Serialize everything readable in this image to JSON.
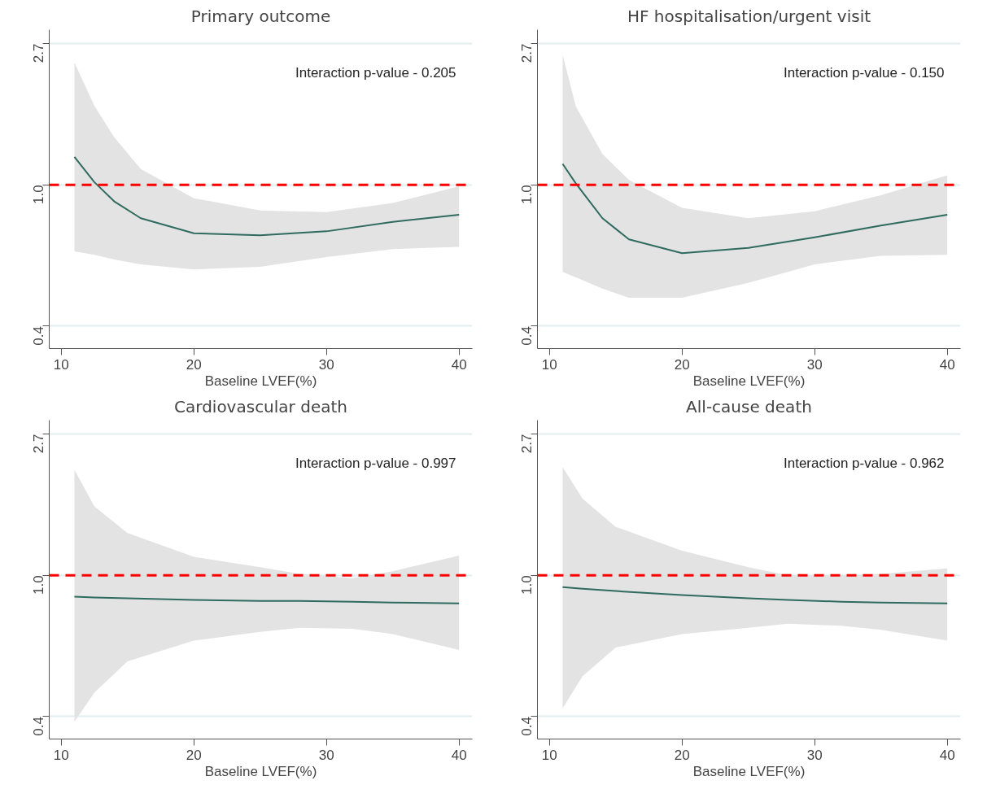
{
  "chart_data": [
    {
      "type": "line",
      "title": "Primary outcome",
      "xlabel": "Baseline LVEF(%)",
      "log": "y",
      "grid": "y",
      "xlim": [
        9.1,
        41
      ],
      "xticks": [
        10,
        20,
        30,
        40
      ],
      "ylim": [
        0.314,
        3.0
      ],
      "yticks": [
        {
          "value": 0.3679,
          "label": "0.4"
        },
        {
          "value": 1,
          "label": "1.0"
        },
        {
          "value": 2.7183,
          "label": "2.7"
        }
      ],
      "ref_lines": [
        {
          "axis": "y",
          "value": 1,
          "color": "#ff0000",
          "line_style": "dashed"
        }
      ],
      "annotations": [
        "Interaction p-value - 0.205"
      ],
      "series": [
        {
          "color": "#2f6b5e",
          "x": [
            11,
            12.5,
            14,
            16,
            20,
            25,
            30,
            35,
            40
          ],
          "values": [
            1.22,
            1.02,
            0.89,
            0.79,
            0.71,
            0.7,
            0.72,
            0.77,
            0.81
          ],
          "lower": [
            0.625,
            0.61,
            0.59,
            0.57,
            0.55,
            0.56,
            0.6,
            0.635,
            0.645
          ],
          "upper": [
            2.38,
            1.75,
            1.4,
            1.12,
            0.91,
            0.835,
            0.825,
            0.88,
            0.99
          ]
        }
      ]
    },
    {
      "type": "line",
      "title": "HF hospitalisation/urgent visit",
      "xlabel": "Baseline LVEF(%)",
      "log": "y",
      "grid": "y",
      "xlim": [
        9.1,
        41
      ],
      "xticks": [
        10,
        20,
        30,
        40
      ],
      "ylim": [
        0.314,
        3.0
      ],
      "yticks": [
        {
          "value": 0.3679,
          "label": "0.4"
        },
        {
          "value": 1,
          "label": "1.0"
        },
        {
          "value": 2.7183,
          "label": "2.7"
        }
      ],
      "ref_lines": [
        {
          "axis": "y",
          "value": 1,
          "color": "#ff0000",
          "line_style": "dashed"
        }
      ],
      "annotations": [
        "Interaction p-value - 0.150"
      ],
      "series": [
        {
          "color": "#2f6b5e",
          "x": [
            11,
            12,
            14,
            16,
            20,
            25,
            30,
            35,
            40
          ],
          "values": [
            1.16,
            1.01,
            0.79,
            0.68,
            0.617,
            0.64,
            0.69,
            0.75,
            0.81
          ],
          "lower": [
            0.54,
            0.52,
            0.48,
            0.45,
            0.45,
            0.5,
            0.57,
            0.605,
            0.61
          ],
          "upper": [
            2.51,
            1.74,
            1.245,
            1.035,
            0.85,
            0.79,
            0.83,
            0.93,
            1.07
          ]
        }
      ]
    },
    {
      "type": "line",
      "title": "Cardiovascular death",
      "xlabel": "Baseline LVEF(%)",
      "log": "y",
      "grid": "y",
      "xlim": [
        9.1,
        41
      ],
      "xticks": [
        10,
        20,
        30,
        40
      ],
      "ylim": [
        0.314,
        3.0
      ],
      "yticks": [
        {
          "value": 0.3679,
          "label": "0.4"
        },
        {
          "value": 1,
          "label": "1.0"
        },
        {
          "value": 2.7183,
          "label": "2.7"
        }
      ],
      "ref_lines": [
        {
          "axis": "y",
          "value": 1,
          "color": "#ff0000",
          "line_style": "dashed"
        }
      ],
      "annotations": [
        "Interaction p-value - 0.997"
      ],
      "series": [
        {
          "color": "#2f6b5e",
          "x": [
            11,
            12.5,
            15,
            20,
            25,
            28,
            32,
            35,
            40
          ],
          "values": [
            0.86,
            0.855,
            0.85,
            0.84,
            0.835,
            0.835,
            0.83,
            0.825,
            0.82
          ],
          "lower": [
            0.355,
            0.436,
            0.544,
            0.63,
            0.67,
            0.69,
            0.685,
            0.66,
            0.59
          ],
          "upper": [
            2.11,
            1.63,
            1.35,
            1.14,
            1.06,
            1.01,
            0.98,
            1.03,
            1.15
          ]
        }
      ]
    },
    {
      "type": "line",
      "title": "All-cause death",
      "xlabel": "Baseline LVEF(%)",
      "log": "y",
      "grid": "y",
      "xlim": [
        9.1,
        41
      ],
      "xticks": [
        10,
        20,
        30,
        40
      ],
      "ylim": [
        0.314,
        3.0
      ],
      "yticks": [
        {
          "value": 0.3679,
          "label": "0.4"
        },
        {
          "value": 1,
          "label": "1.0"
        },
        {
          "value": 2.7183,
          "label": "2.7"
        }
      ],
      "ref_lines": [
        {
          "axis": "y",
          "value": 1,
          "color": "#ff0000",
          "line_style": "dashed"
        }
      ],
      "annotations": [
        "Interaction p-value - 0.962"
      ],
      "series": [
        {
          "color": "#2f6b5e",
          "x": [
            11,
            12.5,
            15,
            20,
            25,
            28,
            32,
            35,
            40
          ],
          "values": [
            0.92,
            0.91,
            0.895,
            0.87,
            0.85,
            0.84,
            0.83,
            0.825,
            0.82
          ],
          "lower": [
            0.39,
            0.49,
            0.6,
            0.66,
            0.69,
            0.71,
            0.7,
            0.68,
            0.63
          ],
          "upper": [
            2.15,
            1.72,
            1.41,
            1.19,
            1.06,
            1.0,
            1.0,
            1.01,
            1.05
          ]
        }
      ]
    }
  ]
}
